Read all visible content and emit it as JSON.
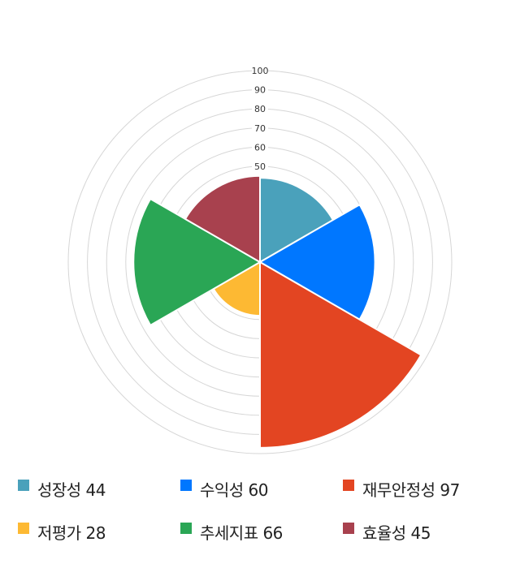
{
  "chart_data": {
    "type": "polar-area",
    "categories": [
      "성장성",
      "수익성",
      "재무안정성",
      "저평가",
      "추세지표",
      "효율성"
    ],
    "values": [
      44,
      60,
      97,
      28,
      66,
      45
    ],
    "colors": [
      "#4aa1bb",
      "#0077ff",
      "#e34522",
      "#fdb933",
      "#2aa655",
      "#a8414e"
    ],
    "rlim": [
      0,
      100
    ],
    "ring_step": 10,
    "tick_labels": [
      "50",
      "60",
      "70",
      "80",
      "90",
      "100"
    ],
    "grid": true,
    "legend_position": "bottom"
  },
  "legend": [
    {
      "label": "성장성 44"
    },
    {
      "label": "수익성 60"
    },
    {
      "label": "재무안정성 97"
    },
    {
      "label": "저평가 28"
    },
    {
      "label": "추세지표 66"
    },
    {
      "label": "효율성 45"
    }
  ]
}
